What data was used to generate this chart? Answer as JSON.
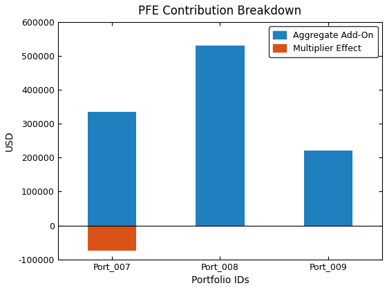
{
  "categories": [
    "Port_007",
    "Port_008",
    "Port_009"
  ],
  "aggregate_addon": [
    335000,
    530000,
    222000
  ],
  "multiplier_effect": [
    -75000,
    0,
    0
  ],
  "bar_color_addon": "#1f7fbf",
  "bar_color_multiplier": "#d95319",
  "title": "PFE Contribution Breakdown",
  "xlabel": "Portfolio IDs",
  "ylabel": "USD",
  "ylim": [
    -100000,
    600000
  ],
  "yticks": [
    -100000,
    0,
    100000,
    200000,
    300000,
    400000,
    500000,
    600000
  ],
  "legend_labels": [
    "Aggregate Add-On",
    "Multiplier Effect"
  ],
  "legend_loc": "upper right",
  "bar_width": 0.45,
  "figsize": [
    5.6,
    4.2
  ],
  "dpi": 100,
  "title_fontsize": 12,
  "axis_label_fontsize": 10,
  "tick_fontsize": 9
}
